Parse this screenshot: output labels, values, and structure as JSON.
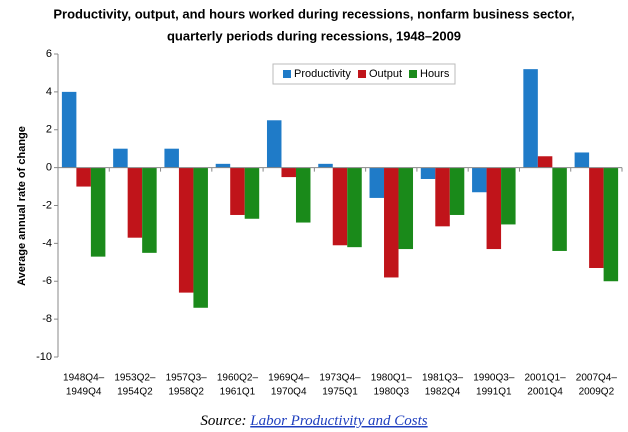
{
  "chart_data": {
    "type": "bar",
    "title": [
      "Productivity, output, and hours worked during recessions, nonfarm business sector,",
      "quarterly periods during recessions, 1948–2009"
    ],
    "y_label": "Average annual rate of change",
    "categories": [
      [
        "1948Q4–",
        "1949Q4"
      ],
      [
        "1953Q2–",
        "1954Q2"
      ],
      [
        "1957Q3–",
        "1958Q2"
      ],
      [
        "1960Q2–",
        "1961Q1"
      ],
      [
        "1969Q4–",
        "1970Q4"
      ],
      [
        "1973Q4–",
        "1975Q1"
      ],
      [
        "1980Q1–",
        "1980Q3"
      ],
      [
        "1981Q3–",
        "1982Q4"
      ],
      [
        "1990Q3–",
        "1991Q1"
      ],
      [
        "2001Q1–",
        "2001Q4"
      ],
      [
        "2007Q4–",
        "2009Q2"
      ]
    ],
    "series": [
      {
        "name": "Productivity",
        "color": "#1f7bc8",
        "values": [
          4.0,
          1.0,
          1.0,
          0.2,
          2.5,
          0.2,
          -1.6,
          -0.6,
          -1.3,
          5.2,
          0.8
        ]
      },
      {
        "name": "Output",
        "color": "#c0141a",
        "values": [
          -1.0,
          -3.7,
          -6.6,
          -2.5,
          -0.5,
          -4.1,
          -5.8,
          -3.1,
          -4.3,
          0.6,
          -5.3
        ]
      },
      {
        "name": "Hours",
        "color": "#1a8a1a",
        "values": [
          -4.7,
          -4.5,
          -7.4,
          -2.7,
          -2.9,
          -4.2,
          -4.3,
          -2.5,
          -3.0,
          -4.4,
          -6.0
        ]
      }
    ],
    "ylim": [
      -10,
      6
    ],
    "yticks": [
      -10,
      -8,
      -6,
      -4,
      -2,
      0,
      2,
      4,
      6
    ],
    "source_label": "Source:",
    "source_link": "Labor Productivity and Costs"
  }
}
